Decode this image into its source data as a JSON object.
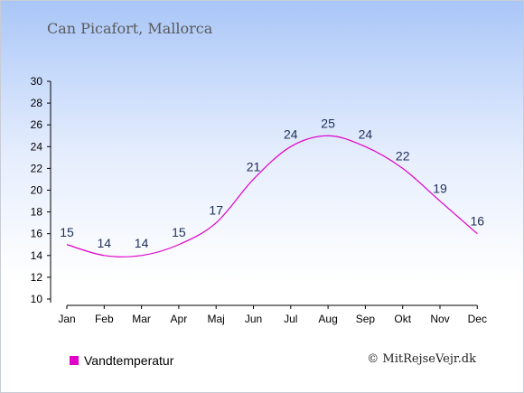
{
  "title": "Can Picafort, Mallorca",
  "credit": "© MitRejseVejr.dk",
  "colors": {
    "series": "#e000c8"
  },
  "chart_data": {
    "type": "line",
    "title": "Can Picafort, Mallorca",
    "categories": [
      "Jan",
      "Feb",
      "Mar",
      "Apr",
      "Maj",
      "Jun",
      "Jul",
      "Aug",
      "Sep",
      "Okt",
      "Nov",
      "Dec"
    ],
    "series": [
      {
        "name": "Vandtemperatur",
        "values": [
          15,
          14,
          14,
          15,
          17,
          21,
          24,
          25,
          24,
          22,
          19,
          16
        ]
      }
    ],
    "yticks": [
      10,
      12,
      14,
      16,
      18,
      20,
      22,
      24,
      26,
      28,
      30
    ],
    "ylim": [
      10,
      30
    ],
    "grid": false,
    "legend": "bottom-left"
  }
}
